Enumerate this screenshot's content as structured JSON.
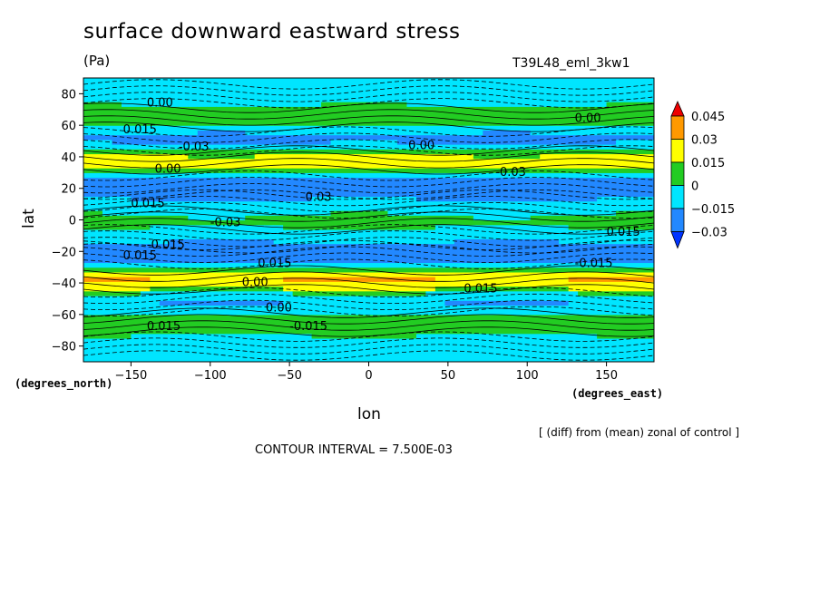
{
  "chart_data": {
    "type": "heatmap",
    "title": "surface downward eastward stress",
    "units": "(Pa)",
    "run_id": "T39L48_eml_3kw1",
    "xlabel": "lon",
    "ylabel": "lat",
    "x_units_label": "(degrees_east)",
    "y_units_label": "(degrees_north)",
    "xlim": [
      -180,
      180
    ],
    "ylim": [
      -90,
      90
    ],
    "x_ticks": [
      -150,
      -100,
      -50,
      0,
      50,
      100,
      150
    ],
    "y_ticks": [
      80,
      60,
      40,
      20,
      0,
      -20,
      -40,
      -60,
      -80
    ],
    "colorbar": {
      "levels": [
        "0.045",
        "0.03",
        "0.015",
        "0",
        "−0.015",
        "−0.03"
      ],
      "colors": [
        "#0033ff",
        "#2288ff",
        "#00e5ff",
        "#22cc22",
        "#ffff00",
        "#ff9900",
        "#ee0000"
      ]
    },
    "contour_labels": [
      "0.00",
      "0.015",
      "-0.03",
      "0.00",
      "0.015",
      "-0.015",
      "0.015",
      "-0.03",
      "0.015",
      "0.00",
      "0.00",
      "0.015",
      "-0.015",
      "0.03",
      "0.00",
      "-0.03",
      "0.015",
      "0.00",
      "-0.015",
      "0.015"
    ],
    "zonal_bands": [
      {
        "lat": 80,
        "value": -0.01
      },
      {
        "lat": 65,
        "value": 0.012
      },
      {
        "lat": 50,
        "value": -0.025
      },
      {
        "lat": 38,
        "value": 0.03
      },
      {
        "lat": 22,
        "value": -0.03
      },
      {
        "lat": 10,
        "value": -0.012
      },
      {
        "lat": 0,
        "value": 0.008
      },
      {
        "lat": -12,
        "value": -0.01
      },
      {
        "lat": -22,
        "value": -0.03
      },
      {
        "lat": -38,
        "value": 0.035
      },
      {
        "lat": -52,
        "value": -0.02
      },
      {
        "lat": -65,
        "value": 0.01
      },
      {
        "lat": -80,
        "value": -0.008
      }
    ],
    "contour_interval": "CONTOUR INTERVAL = 7.500E-03",
    "annotation": "[ (diff) from (mean) zonal of control ]"
  }
}
